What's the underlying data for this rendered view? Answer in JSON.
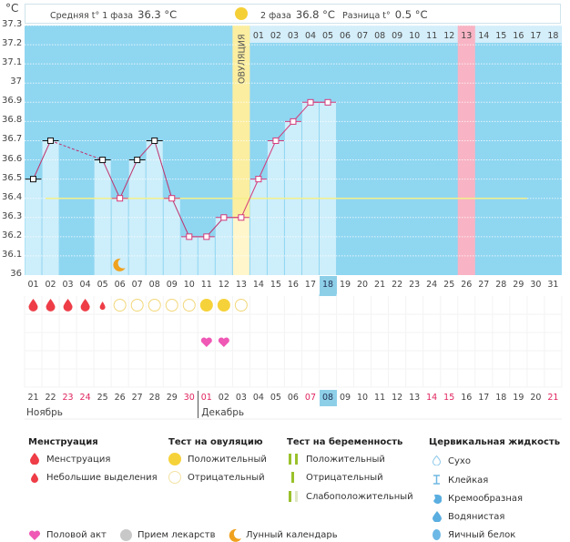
{
  "header": {
    "unit": "°C",
    "phase1_label": "Средняя t° 1 фаза",
    "phase1_value": "36.3 °C",
    "phase2_label": "2 фаза",
    "phase2_value": "36.8 °C",
    "diff_label": "Разница t°",
    "diff_value": "0.5 °C"
  },
  "ovulation_label": "ОВУЛЯЦИЯ",
  "colors": {
    "plot_bg": "#8fd6f1",
    "bar": "#cdeefb",
    "ovulation": "#fbeea0",
    "highlight_day": "#f8b4c4",
    "line_phase1": "#c0306a",
    "line_phase2": "#d43a7a",
    "coverline": "#f4f08a",
    "menstruation": "#ee3d47",
    "ovu_test_pos": "#f6d23a",
    "ovu_test_neg": "#f2d77a",
    "heart": "#ef58b5",
    "moon": "#f0a21e"
  },
  "chart_data": {
    "type": "line",
    "title": "",
    "xlabel": "",
    "ylabel": "°C",
    "ylim": [
      36.0,
      37.3
    ],
    "yticks": [
      "36",
      "36.1",
      "36.2",
      "36.3",
      "36.4",
      "36.5",
      "36.6",
      "36.7",
      "36.8",
      "36.9",
      "37",
      "37.1",
      "37.2",
      "37.3"
    ],
    "cycle_days": [
      "01",
      "02",
      "03",
      "04",
      "05",
      "06",
      "07",
      "08",
      "09",
      "10",
      "11",
      "12",
      "13",
      "14",
      "15",
      "16",
      "17",
      "18",
      "19",
      "20",
      "21",
      "22",
      "23",
      "24",
      "25",
      "26",
      "27",
      "28",
      "29",
      "30",
      "31"
    ],
    "dpo_days": [
      "01",
      "02",
      "03",
      "04",
      "05",
      "06",
      "07",
      "08",
      "09",
      "10",
      "11",
      "12",
      "13",
      "14",
      "15",
      "16",
      "17",
      "18"
    ],
    "dates": [
      "21",
      "22",
      "23",
      "24",
      "25",
      "26",
      "27",
      "28",
      "29",
      "30",
      "01",
      "02",
      "03",
      "04",
      "05",
      "06",
      "07",
      "08",
      "09",
      "10",
      "11",
      "12",
      "13",
      "14",
      "15",
      "16",
      "17",
      "18",
      "19",
      "20",
      "21"
    ],
    "weekend_date_indices": [
      2,
      3,
      9,
      10,
      16,
      23,
      24,
      30
    ],
    "months": [
      {
        "label": "Ноябрь",
        "start_index": 0
      },
      {
        "label": "Декабрь",
        "start_index": 10
      }
    ],
    "selected_day_index": 17,
    "ovulation_day_index": 12,
    "highlight_day_index": 25,
    "coverline": 36.4,
    "coverline_end_index": 29,
    "series": [
      {
        "name": "temperature",
        "values": [
          36.5,
          36.7,
          null,
          null,
          36.6,
          36.4,
          36.6,
          36.7,
          36.4,
          36.2,
          36.2,
          36.3,
          36.3,
          36.5,
          36.7,
          36.8,
          36.9,
          36.9,
          null,
          null,
          null,
          null,
          null,
          null,
          null,
          null,
          null,
          null,
          null,
          null,
          null
        ]
      }
    ],
    "markers": {
      "menstruation": [
        {
          "day_index": 0,
          "type": "full"
        },
        {
          "day_index": 1,
          "type": "full"
        },
        {
          "day_index": 2,
          "type": "full"
        },
        {
          "day_index": 3,
          "type": "full"
        },
        {
          "day_index": 4,
          "type": "spotting"
        }
      ],
      "ovulation_test": [
        {
          "day_index": 5,
          "result": "negative"
        },
        {
          "day_index": 6,
          "result": "negative"
        },
        {
          "day_index": 7,
          "result": "negative"
        },
        {
          "day_index": 8,
          "result": "negative"
        },
        {
          "day_index": 9,
          "result": "negative"
        },
        {
          "day_index": 10,
          "result": "positive"
        },
        {
          "day_index": 11,
          "result": "positive"
        },
        {
          "day_index": 12,
          "result": "negative"
        }
      ],
      "intercourse": [
        10,
        11
      ],
      "moon": [
        5
      ]
    }
  },
  "legend": {
    "menstruation": {
      "title": "Менструация",
      "items": [
        "Менструация",
        "Небольшие выделения"
      ]
    },
    "ovulation_test": {
      "title": "Тест на овуляцию",
      "items": [
        "Положительный",
        "Отрицательный"
      ]
    },
    "pregnancy_test": {
      "title": "Тест на беременность",
      "items": [
        "Положительный",
        "Отрицательный",
        "Слабоположительный"
      ]
    },
    "cervical_fluid": {
      "title": "Цервикальная жидкость",
      "items": [
        "Сухо",
        "Клейкая",
        "Кремообразная",
        "Водянистая",
        "Яичный белок"
      ]
    },
    "other": [
      "Половой акт",
      "Прием лекарств",
      "Лунный календарь"
    ]
  }
}
